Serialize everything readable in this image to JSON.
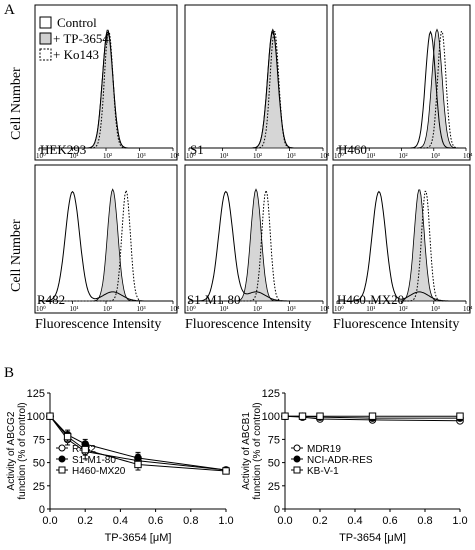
{
  "panel_a": {
    "letter": "A",
    "ylabel": "Cell Number",
    "xlabel": "Fluorescence Intensity",
    "legend": [
      "Control",
      "+ TP-3654",
      "+ Ko143"
    ],
    "tick_labels": [
      "10⁰",
      "10¹",
      "10²",
      "10³",
      "10⁴"
    ],
    "cell_lines": [
      "HEK293",
      "S1",
      "H460",
      "R482",
      "S1-M1-80",
      "H460-MX20"
    ]
  },
  "panel_b": {
    "letter": "B"
  },
  "chart_data": [
    {
      "type": "line",
      "title": "",
      "xlabel": "TP-3654 [μM]",
      "ylabel": "Activity of ABCG2 function (% of control)",
      "xlim": [
        0,
        1.0
      ],
      "ylim": [
        0,
        125
      ],
      "x_ticks": [
        "0.0",
        "0.2",
        "0.4",
        "0.6",
        "0.8",
        "1.0"
      ],
      "y_ticks": [
        "0",
        "25",
        "50",
        "75",
        "100",
        "125"
      ],
      "legend_position": "bottom-left",
      "series": [
        {
          "name": "R482",
          "marker": "open-circle",
          "x": [
            0,
            0.1,
            0.2,
            0.5,
            1.0
          ],
          "y": [
            100,
            75,
            62,
            52,
            42
          ],
          "err": [
            3,
            6,
            8,
            7,
            3
          ]
        },
        {
          "name": "S1-M1-80",
          "marker": "filled-circle",
          "x": [
            0,
            0.1,
            0.2,
            0.5,
            1.0
          ],
          "y": [
            100,
            80,
            70,
            55,
            42
          ],
          "err": [
            3,
            5,
            5,
            6,
            2
          ]
        },
        {
          "name": "H460-MX20",
          "marker": "open-square",
          "x": [
            0,
            0.1,
            0.2,
            0.5,
            1.0
          ],
          "y": [
            100,
            78,
            64,
            48,
            41
          ],
          "err": [
            3,
            5,
            6,
            6,
            2
          ]
        }
      ]
    },
    {
      "type": "line",
      "title": "",
      "xlabel": "TP-3654 [μM]",
      "ylabel": "Activity of ABCB1 function (% of control)",
      "xlim": [
        0,
        1.0
      ],
      "ylim": [
        0,
        125
      ],
      "x_ticks": [
        "0.0",
        "0.2",
        "0.4",
        "0.6",
        "0.8",
        "1.0"
      ],
      "y_ticks": [
        "0",
        "25",
        "50",
        "75",
        "100",
        "125"
      ],
      "legend_position": "bottom-left",
      "series": [
        {
          "name": "MDR19",
          "marker": "open-circle",
          "x": [
            0,
            0.1,
            0.2,
            0.5,
            1.0
          ],
          "y": [
            100,
            99,
            97,
            96,
            95
          ],
          "err": [
            2,
            2,
            2,
            2,
            2
          ]
        },
        {
          "name": "NCI-ADR-RES",
          "marker": "filled-circle",
          "x": [
            0,
            0.1,
            0.2,
            0.5,
            1.0
          ],
          "y": [
            100,
            100,
            99,
            98,
            98
          ],
          "err": [
            2,
            2,
            2,
            2,
            2
          ]
        },
        {
          "name": "KB-V-1",
          "marker": "open-square",
          "x": [
            0,
            0.1,
            0.2,
            0.5,
            1.0
          ],
          "y": [
            100,
            100,
            100,
            100,
            100
          ],
          "err": [
            2,
            2,
            2,
            2,
            2
          ]
        }
      ]
    }
  ]
}
